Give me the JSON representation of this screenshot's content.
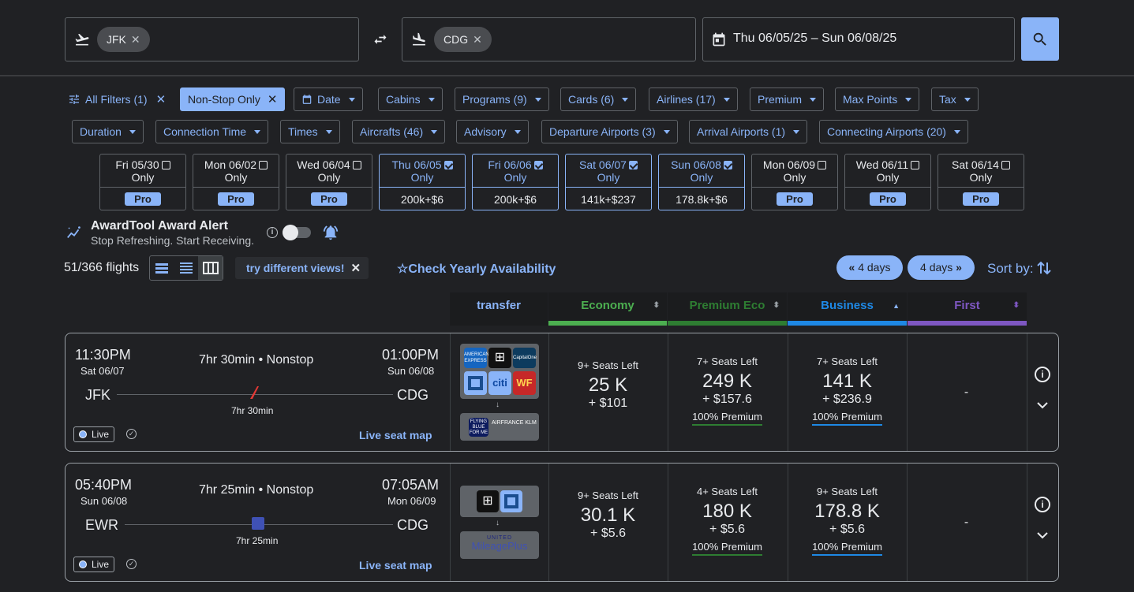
{
  "search": {
    "origin": "JFK",
    "destination": "CDG",
    "dates": "Thu 06/05/25 – Sun 06/08/25"
  },
  "filters": {
    "row1": [
      {
        "label": "All Filters (1)",
        "type": "all"
      },
      {
        "label": "Non-Stop Only",
        "type": "active"
      },
      {
        "label": "Date",
        "type": "date"
      },
      {
        "label": "Cabins"
      },
      {
        "label": "Programs (9)"
      },
      {
        "label": "Cards (6)"
      },
      {
        "label": "Airlines (17)"
      },
      {
        "label": "Premium"
      },
      {
        "label": "Max Points"
      },
      {
        "label": "Tax"
      }
    ],
    "row2": [
      {
        "label": "Duration"
      },
      {
        "label": "Connection Time"
      },
      {
        "label": "Times"
      },
      {
        "label": "Aircrafts (46)"
      },
      {
        "label": "Advisory"
      },
      {
        "label": "Departure Airports (3)"
      },
      {
        "label": "Arrival Airports (1)"
      },
      {
        "label": "Connecting Airports (20)"
      }
    ]
  },
  "dates": [
    {
      "day": "Fri 05/30",
      "sub": "Only",
      "checked": false,
      "value": "Pro"
    },
    {
      "day": "Mon 06/02",
      "sub": "Only",
      "checked": false,
      "value": "Pro"
    },
    {
      "day": "Wed 06/04",
      "sub": "Only",
      "checked": false,
      "value": "Pro"
    },
    {
      "day": "Thu 06/05",
      "sub": "Only",
      "checked": true,
      "value": "200k+$6"
    },
    {
      "day": "Fri 06/06",
      "sub": "Only",
      "checked": true,
      "value": "200k+$6"
    },
    {
      "day": "Sat 06/07",
      "sub": "Only",
      "checked": true,
      "value": "141k+$237"
    },
    {
      "day": "Sun 06/08",
      "sub": "Only",
      "checked": true,
      "value": "178.8k+$6"
    },
    {
      "day": "Mon 06/09",
      "sub": "Only",
      "checked": false,
      "value": "Pro"
    },
    {
      "day": "Wed 06/11",
      "sub": "Only",
      "checked": false,
      "value": "Pro"
    },
    {
      "day": "Sat 06/14",
      "sub": "Only",
      "checked": false,
      "value": "Pro"
    }
  ],
  "alert": {
    "title": "AwardTool Award Alert",
    "subtitle": "Stop Refreshing. Start Receiving."
  },
  "toolbar": {
    "count": "51/366 flights",
    "tip": "try different views!",
    "yearly": "Check Yearly Availability",
    "prev": "4 days",
    "next": "4 days",
    "sort": "Sort by:"
  },
  "columns": [
    {
      "label": "transfer",
      "color": "#8ab4f8"
    },
    {
      "label": "Economy",
      "color": "#4caf50"
    },
    {
      "label": "Premium Eco",
      "color": "#2e7d32"
    },
    {
      "label": "Business",
      "color": "#1e88e5"
    },
    {
      "label": "First",
      "color": "#7e57c2"
    }
  ],
  "flights": [
    {
      "dep_time": "11:30PM",
      "dep_date": "Sat 06/07",
      "arr_time": "01:00PM",
      "arr_date": "Sun 06/08",
      "summary": "7hr 30min • Nonstop",
      "from": "JFK",
      "to": "CDG",
      "duration": "7hr 30min",
      "live": "Live",
      "seatmap": "Live seat map",
      "cabins": [
        {
          "seats": "9+ Seats Left",
          "points": "25 K",
          "tax": "+ $101",
          "premium": ""
        },
        {
          "seats": "7+ Seats Left",
          "points": "249 K",
          "tax": "+ $157.6",
          "premium": "100% Premium"
        },
        {
          "seats": "7+ Seats Left",
          "points": "141 K",
          "tax": "+ $236.9",
          "premium": "100% Premium"
        },
        {
          "seats": "",
          "points": "-",
          "tax": "",
          "premium": ""
        }
      ]
    },
    {
      "dep_time": "05:40PM",
      "dep_date": "Sun 06/08",
      "arr_time": "07:05AM",
      "arr_date": "Mon 06/09",
      "summary": "7hr 25min • Nonstop",
      "from": "EWR",
      "to": "CDG",
      "duration": "7hr 25min",
      "live": "Live",
      "seatmap": "Live seat map",
      "cabins": [
        {
          "seats": "9+ Seats Left",
          "points": "30.1 K",
          "tax": "+ $5.6",
          "premium": ""
        },
        {
          "seats": "4+ Seats Left",
          "points": "180 K",
          "tax": "+ $5.6",
          "premium": "100% Premium"
        },
        {
          "seats": "9+ Seats Left",
          "points": "178.8 K",
          "tax": "+ $5.6",
          "premium": "100% Premium"
        },
        {
          "seats": "",
          "points": "-",
          "tax": "",
          "premium": ""
        }
      ]
    }
  ]
}
